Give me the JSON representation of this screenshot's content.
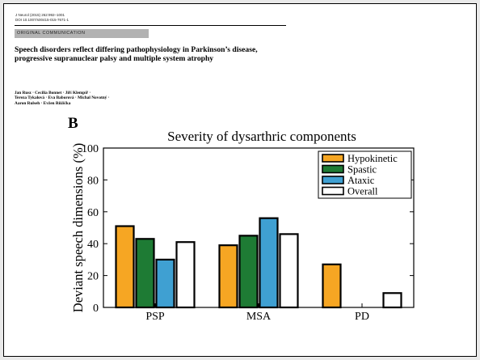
{
  "paper": {
    "journal_line1": "J Neurol (2015) 262:992–1001",
    "journal_line2": "DOI 10.1007/s00415-015-7671-1",
    "section_label": "ORIGINAL COMMUNICATION",
    "title": "Speech disorders reflect differing pathophysiology in Parkinson’s disease, progressive supranuclear palsy and multiple system atrophy",
    "authors_line1": "Jan Rusz · Cecilia Bonnet · Jiří Klempíř ·",
    "authors_line2": "Tereza Tykalová · Eva Baborová · Michal Novotný ·",
    "authors_line3": "Aaron Rulseh · Evžen Růžička"
  },
  "chart_data": {
    "type": "bar",
    "panel_label": "B",
    "title": "Severity of dysarthric components",
    "xlabel": "",
    "ylabel": "Deviant speech dimensions (%)",
    "categories": [
      "PSP",
      "MSA",
      "PD"
    ],
    "ylim": [
      0,
      100
    ],
    "yticks": [
      0,
      20,
      40,
      60,
      80,
      100
    ],
    "legend_position": "top-right",
    "grid": false,
    "series": [
      {
        "name": "Hypokinetic",
        "color": "#f6a623",
        "values": [
          51,
          39,
          27
        ]
      },
      {
        "name": "Spastic",
        "color": "#1e7b34",
        "values": [
          43,
          45,
          0
        ]
      },
      {
        "name": "Ataxic",
        "color": "#3fa0d2",
        "values": [
          30,
          56,
          0
        ]
      },
      {
        "name": "Overall",
        "color": "#ffffff",
        "values": [
          41,
          46,
          9
        ]
      }
    ]
  }
}
